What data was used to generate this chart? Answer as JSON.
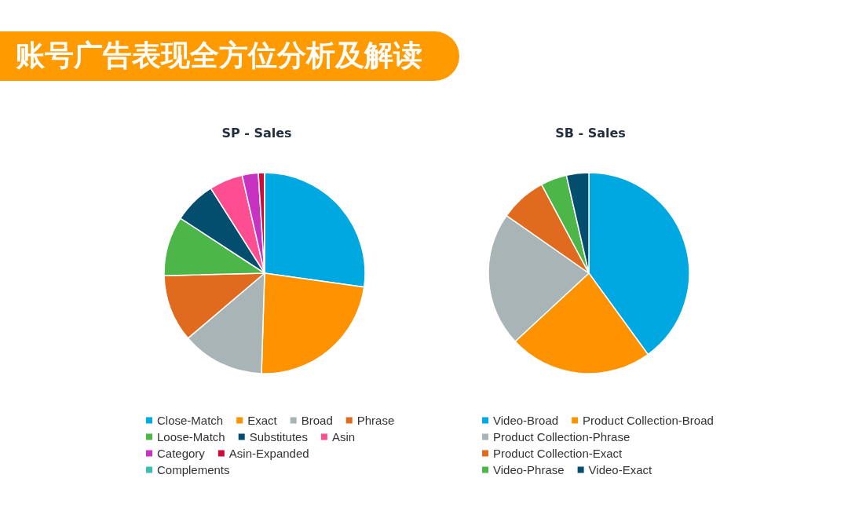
{
  "chart_data": [
    {
      "type": "other",
      "title": "账号广告表现全方位分析及解读"
    },
    {
      "type": "pie",
      "title": "SP - Sales",
      "categories": [
        "Close-Match",
        "Exact",
        "Broad",
        "Phrase",
        "Loose-Match",
        "Substitutes",
        "Asin",
        "Category",
        "Asin-Expanded",
        "Complements"
      ],
      "values": [
        27.2,
        23.3,
        13.3,
        10.8,
        9.6,
        6.8,
        5.4,
        2.6,
        1.0,
        0
      ],
      "colors": [
        "#00a8e1",
        "#ff9200",
        "#a8b4b5",
        "#e06b1f",
        "#4cb648",
        "#034e6e",
        "#ff4d91",
        "#c832c0",
        "#cc0c39",
        "#38c1b0"
      ],
      "legend": "bottom"
    },
    {
      "type": "pie",
      "title": "SB - Sales",
      "categories": [
        "Video-Broad",
        "Product Collection-Broad",
        "Product Collection-Phrase",
        "Product Collection-Exact",
        "Video-Phrase",
        "Video-Exact"
      ],
      "values": [
        40.0,
        23.1,
        21.6,
        7.5,
        4.2,
        3.6
      ],
      "colors": [
        "#00a8e1",
        "#ff9200",
        "#a8b4b5",
        "#e06b1f",
        "#4cb648",
        "#034e6e"
      ],
      "legend": "bottom"
    }
  ]
}
